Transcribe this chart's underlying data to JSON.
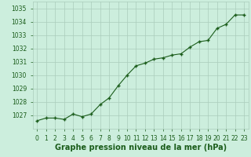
{
  "x": [
    0,
    1,
    2,
    3,
    4,
    5,
    6,
    7,
    8,
    9,
    10,
    11,
    12,
    13,
    14,
    15,
    16,
    17,
    18,
    19,
    20,
    21,
    22,
    23
  ],
  "y": [
    1026.6,
    1026.8,
    1026.8,
    1026.7,
    1027.1,
    1026.9,
    1027.1,
    1027.8,
    1028.3,
    1029.2,
    1030.0,
    1030.7,
    1030.9,
    1031.2,
    1031.3,
    1031.5,
    1031.6,
    1032.1,
    1032.5,
    1032.6,
    1033.5,
    1033.8,
    1034.5,
    1034.5
  ],
  "line_color": "#1a5c1a",
  "marker_color": "#1a5c1a",
  "bg_color": "#cceedd",
  "grid_color": "#aaccbb",
  "title": "Graphe pression niveau de la mer (hPa)",
  "xlabel_ticks": [
    "0",
    "1",
    "2",
    "3",
    "4",
    "5",
    "6",
    "7",
    "8",
    "9",
    "10",
    "11",
    "12",
    "13",
    "14",
    "15",
    "16",
    "17",
    "18",
    "19",
    "20",
    "21",
    "22",
    "23"
  ],
  "xlim": [
    -0.5,
    23.5
  ],
  "ylim": [
    1026.0,
    1035.5
  ],
  "yticks": [
    1027,
    1028,
    1029,
    1030,
    1031,
    1032,
    1033,
    1034,
    1035
  ],
  "title_fontsize": 7.0,
  "tick_fontsize": 5.5,
  "title_color": "#1a5c1a",
  "tick_color": "#1a5c1a"
}
